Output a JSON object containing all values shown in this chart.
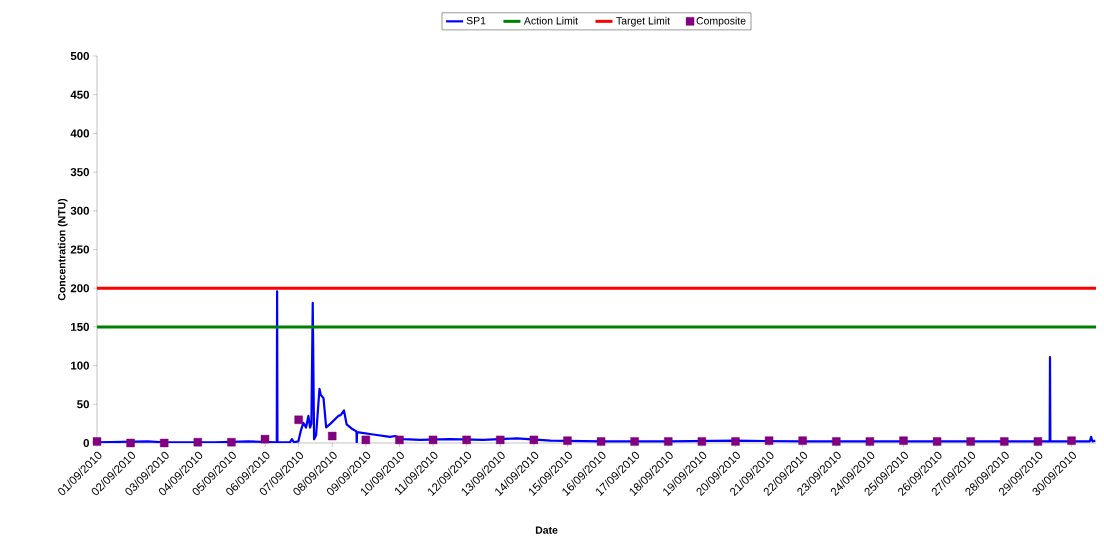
{
  "chart_data": {
    "type": "line",
    "xlabel": "Date",
    "ylabel": "Concentration (NTU)",
    "xlim": [
      "2010-09-01",
      "2010-09-30T17:30"
    ],
    "ylim": [
      0,
      500
    ],
    "yticks": [
      0,
      50,
      100,
      150,
      200,
      250,
      300,
      350,
      400,
      450,
      500
    ],
    "xticks": [
      {
        "value": "2010-09-01",
        "label": "01/09/2010"
      },
      {
        "value": "2010-09-02",
        "label": "02/09/2010"
      },
      {
        "value": "2010-09-03",
        "label": "03/09/2010"
      },
      {
        "value": "2010-09-04",
        "label": "04/09/2010"
      },
      {
        "value": "2010-09-05",
        "label": "05/09/2010"
      },
      {
        "value": "2010-09-06",
        "label": "06/09/2010"
      },
      {
        "value": "2010-09-07",
        "label": "07/09/2010"
      },
      {
        "value": "2010-09-08",
        "label": "08/09/2010"
      },
      {
        "value": "2010-09-09",
        "label": "09/09/2010"
      },
      {
        "value": "2010-09-10",
        "label": "10/09/2010"
      },
      {
        "value": "2010-09-11",
        "label": "11/09/2010"
      },
      {
        "value": "2010-09-12",
        "label": "12/09/2010"
      },
      {
        "value": "2010-09-13",
        "label": "13/09/2010"
      },
      {
        "value": "2010-09-14",
        "label": "14/09/2010"
      },
      {
        "value": "2010-09-15",
        "label": "15/09/2010"
      },
      {
        "value": "2010-09-16",
        "label": "16/09/2010"
      },
      {
        "value": "2010-09-17",
        "label": "17/09/2010"
      },
      {
        "value": "2010-09-18",
        "label": "18/09/2010"
      },
      {
        "value": "2010-09-19",
        "label": "19/09/2010"
      },
      {
        "value": "2010-09-20",
        "label": "20/09/2010"
      },
      {
        "value": "2010-09-21",
        "label": "21/09/2010"
      },
      {
        "value": "2010-09-22",
        "label": "22/09/2010"
      },
      {
        "value": "2010-09-23",
        "label": "23/09/2010"
      },
      {
        "value": "2010-09-24",
        "label": "24/09/2010"
      },
      {
        "value": "2010-09-25",
        "label": "25/09/2010"
      },
      {
        "value": "2010-09-26",
        "label": "26/09/2010"
      },
      {
        "value": "2010-09-27",
        "label": "27/09/2010"
      },
      {
        "value": "2010-09-28",
        "label": "28/09/2010"
      },
      {
        "value": "2010-09-29",
        "label": "29/09/2010"
      },
      {
        "value": "2010-09-30",
        "label": "30/09/2010"
      }
    ],
    "legend": "top",
    "ref_lines": [
      {
        "axis": "y",
        "value": 150,
        "label": "Action Limit",
        "color": "#008000"
      },
      {
        "axis": "y",
        "value": 200,
        "label": "Target Limit",
        "color": "#ff0000"
      }
    ],
    "series": [
      {
        "name": "SP1",
        "marker": "none",
        "color": "#0000ff",
        "x": [
          "2010-09-01T00:00",
          "2010-09-02T12:00",
          "2010-09-03T00:00",
          "2010-09-04T12:00",
          "2010-09-05T12:00",
          "2010-09-06T08:24",
          "2010-09-06T08:38",
          "2010-09-06T08:53",
          "2010-09-06T17:51",
          "2010-09-06T19:12",
          "2010-09-06T20:38",
          "2010-09-06T23:47",
          "2010-09-07T01:26",
          "2010-09-07T03:22",
          "2010-09-07T05:17",
          "2010-09-07T06:58",
          "2010-09-07T08:10",
          "2010-09-07T09:07",
          "2010-09-07T10:05",
          "2010-09-07T11:02",
          "2010-09-07T12:29",
          "2010-09-07T14:53",
          "2010-09-07T15:50",
          "2010-09-07T17:46",
          "2010-09-07T19:41",
          "2010-09-07T22:48",
          "2010-09-08T04:19",
          "2010-09-08T06:00",
          "2010-09-08T08:24",
          "2010-09-08T10:19",
          "2010-09-08T14:24",
          "2010-09-08T17:17",
          "2010-09-08T17:31",
          "2010-09-08T17:46",
          "2010-09-09T05:17",
          "2010-09-09T17:17",
          "2010-09-09T20:53",
          "2010-09-10T02:53",
          "2010-09-10T14:38",
          "2010-09-11T12:00",
          "2010-09-12T12:00",
          "2010-09-13T12:00",
          "2010-09-14T12:00",
          "2010-09-16T00:00",
          "2010-09-18T00:00",
          "2010-09-20T00:00",
          "2010-09-22T00:00",
          "2010-09-24T00:00",
          "2010-09-26T00:00",
          "2010-09-28T00:00",
          "2010-09-29T08:24",
          "2010-09-29T08:38",
          "2010-09-29T08:53",
          "2010-09-30T13:00",
          "2010-09-30T14:00",
          "2010-09-30T15:00",
          "2010-09-30T17:00"
        ],
        "values": [
          1,
          2,
          1,
          1,
          2,
          1,
          196,
          1,
          1,
          5,
          1,
          2,
          15,
          26,
          20,
          35,
          20,
          25,
          181,
          5,
          10,
          70,
          62,
          58,
          20,
          25,
          35,
          36,
          42,
          24,
          18,
          15,
          0,
          14,
          11,
          8,
          9,
          5,
          4,
          5,
          4,
          6,
          3,
          2,
          2,
          3,
          2,
          2,
          2,
          2,
          2,
          111,
          2,
          2,
          8,
          2,
          3
        ]
      },
      {
        "name": "Composite",
        "type": "scatter",
        "marker": "square",
        "color": "#800080",
        "x": [
          "2010-09-01",
          "2010-09-02",
          "2010-09-03",
          "2010-09-04",
          "2010-09-05",
          "2010-09-06",
          "2010-09-07",
          "2010-09-08",
          "2010-09-09",
          "2010-09-10",
          "2010-09-11",
          "2010-09-12",
          "2010-09-13",
          "2010-09-14",
          "2010-09-15",
          "2010-09-16",
          "2010-09-17",
          "2010-09-18",
          "2010-09-19",
          "2010-09-20",
          "2010-09-21",
          "2010-09-22",
          "2010-09-23",
          "2010-09-24",
          "2010-09-25",
          "2010-09-26",
          "2010-09-27",
          "2010-09-28",
          "2010-09-29",
          "2010-09-30"
        ],
        "values": [
          2,
          0,
          0,
          1,
          1,
          5,
          30,
          9,
          4,
          4,
          4,
          4,
          4,
          4,
          3,
          2,
          2,
          2,
          2,
          2,
          3,
          3,
          2,
          2,
          3,
          2,
          2,
          2,
          2,
          3
        ]
      }
    ]
  }
}
